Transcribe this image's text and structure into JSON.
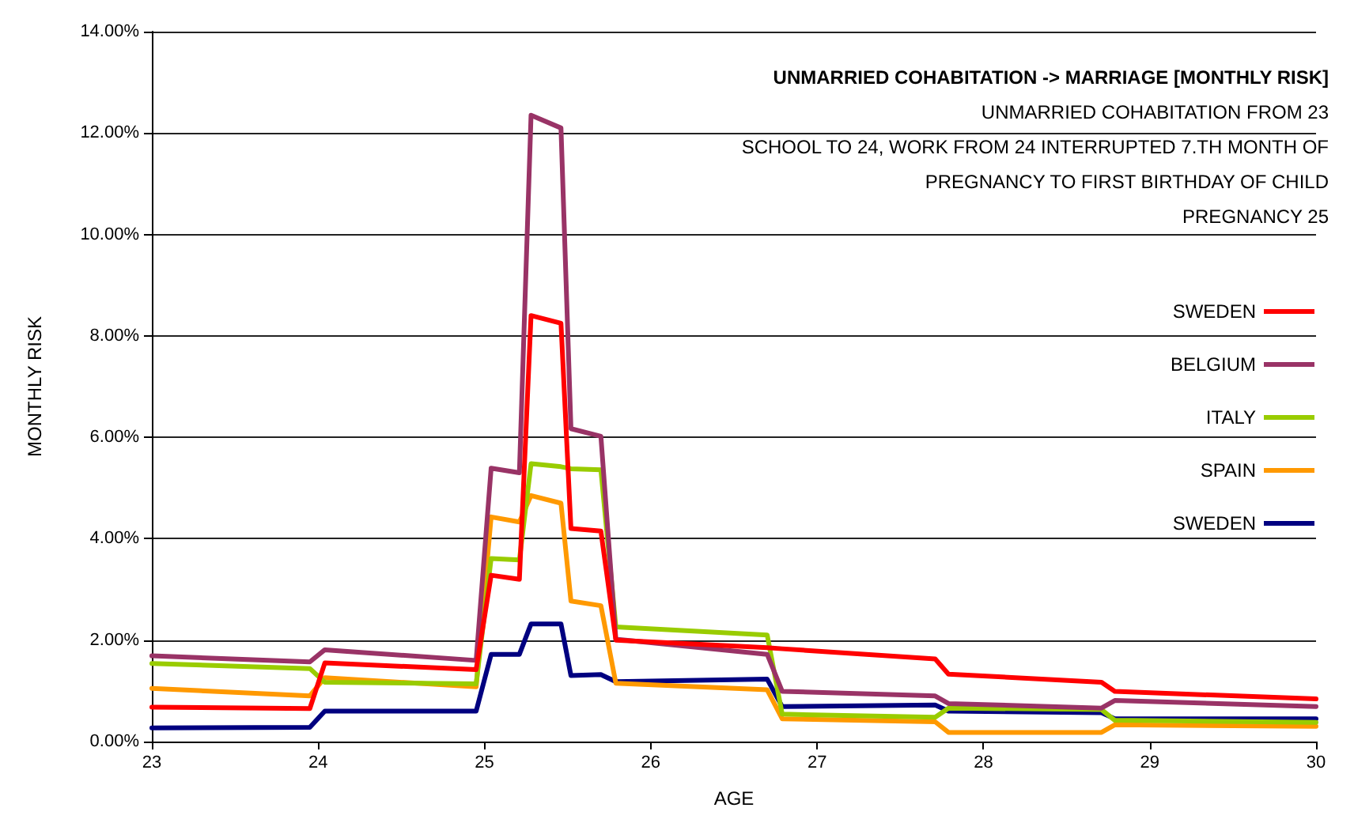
{
  "chart_data": {
    "type": "line",
    "title": "UNMARRIED COHABITATION -> MARRIAGE [MONTHLY RISK]",
    "subtitle": "UNMARRIED COHABITATION FROM 23\nSCHOOL TO 24, WORK FROM 24 INTERRUPTED 7.TH MONTH OF\nPREGNANCY TO FIRST BIRTHDAY OF CHILD\nPREGNANCY 25",
    "xlabel": "AGE",
    "ylabel": "MONTHLY RISK",
    "x": [
      23,
      23.95,
      24.04,
      24.95,
      25.04,
      25.21,
      25.28,
      25.46,
      25.52,
      25.7,
      25.79,
      26.7,
      26.79,
      27.71,
      27.79,
      28.71,
      28.79,
      30
    ],
    "series": [
      {
        "name": "SWEDEN",
        "color": "#ff0000",
        "values": [
          0.68,
          0.65,
          1.55,
          1.42,
          3.28,
          3.2,
          8.4,
          8.25,
          4.2,
          4.15,
          2.0,
          1.85,
          1.83,
          1.63,
          1.33,
          1.17,
          0.99,
          0.84
        ]
      },
      {
        "name": "BELGIUM",
        "color": "#993366",
        "values": [
          1.69,
          1.57,
          1.81,
          1.6,
          5.39,
          5.3,
          12.35,
          12.1,
          6.17,
          6.02,
          2.02,
          1.72,
          0.99,
          0.9,
          0.75,
          0.66,
          0.81,
          0.69
        ]
      },
      {
        "name": "ITALY",
        "color": "#99cc00",
        "values": [
          1.54,
          1.44,
          1.17,
          1.14,
          3.61,
          3.58,
          5.48,
          5.42,
          5.38,
          5.36,
          2.26,
          2.1,
          0.54,
          0.48,
          0.66,
          0.63,
          0.42,
          0.38
        ]
      },
      {
        "name": "SPAIN",
        "color": "#ff9900",
        "values": [
          1.05,
          0.9,
          1.26,
          1.08,
          4.43,
          4.33,
          4.85,
          4.7,
          2.77,
          2.68,
          1.15,
          1.02,
          0.45,
          0.39,
          0.18,
          0.18,
          0.33,
          0.3
        ]
      },
      {
        "name": "SWEDEN",
        "color": "#000080",
        "values": [
          0.27,
          0.28,
          0.6,
          0.6,
          1.72,
          1.72,
          2.32,
          2.32,
          1.3,
          1.32,
          1.18,
          1.23,
          0.69,
          0.72,
          0.6,
          0.57,
          0.45,
          0.45
        ]
      }
    ],
    "xlim": [
      23,
      30
    ],
    "xticks": [
      23,
      24,
      25,
      26,
      27,
      28,
      29,
      30
    ],
    "ylim": [
      0,
      14
    ],
    "yticks": [
      {
        "value": 0,
        "label": "0.00%"
      },
      {
        "value": 2,
        "label": "2.00%"
      },
      {
        "value": 4,
        "label": "4.00%"
      },
      {
        "value": 6,
        "label": "6.00%"
      },
      {
        "value": 8,
        "label": "8.00%"
      },
      {
        "value": 10,
        "label": "10.00%"
      },
      {
        "value": 12,
        "label": "12.00%"
      },
      {
        "value": 14,
        "label": "14.00%"
      }
    ],
    "grid": "y",
    "legend": "right",
    "marker": "none",
    "line_style": "solid"
  }
}
